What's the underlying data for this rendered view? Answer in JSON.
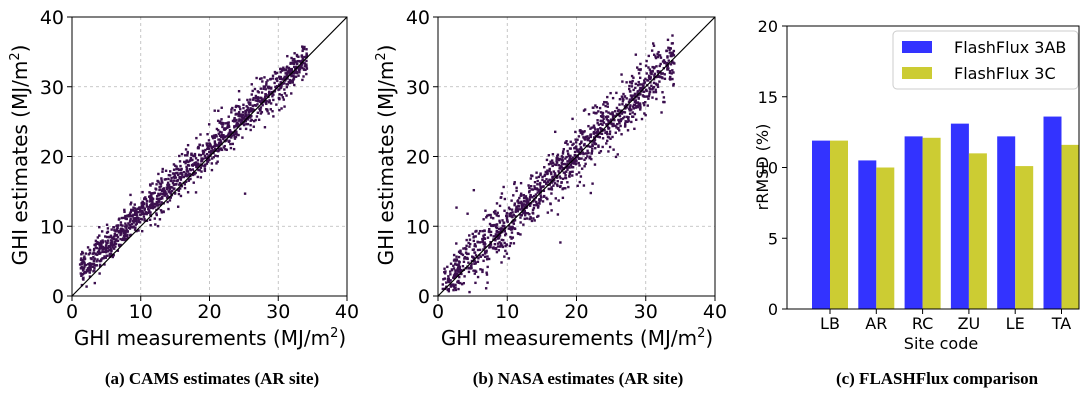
{
  "chart_data": [
    {
      "id": "a",
      "type": "scatter",
      "style": "2d-histogram",
      "caption": "(a) CAMS estimates (AR site)",
      "xlabel": "GHI measurements (MJ/m",
      "xlabel_sup": "2",
      "xlabel_end": ")",
      "ylabel": "GHI estimates (MJ/m",
      "ylabel_sup": "2",
      "ylabel_end": ")",
      "xlim": [
        0,
        40
      ],
      "ylim": [
        0,
        40
      ],
      "xticks": [
        "0",
        "10",
        "20",
        "30",
        "40"
      ],
      "yticks": [
        "0",
        "10",
        "20",
        "30",
        "40"
      ],
      "grid": true,
      "identity_line": true,
      "point_color": "#3b0f4e",
      "x_range": [
        1.0,
        34.0
      ],
      "y_intercept": 2.5,
      "y_slope": 0.93,
      "spread": 1.3,
      "outliers": [
        [
          25,
          14.5
        ]
      ]
    },
    {
      "id": "b",
      "type": "scatter",
      "style": "2d-histogram",
      "caption": "(b) NASA estimates (AR site)",
      "xlabel": "GHI measurements (MJ/m",
      "xlabel_sup": "2",
      "xlabel_end": ")",
      "ylabel": "GHI estimates (MJ/m",
      "ylabel_sup": "2",
      "ylabel_end": ")",
      "xlim": [
        0,
        40
      ],
      "ylim": [
        0,
        40
      ],
      "xticks": [
        "0",
        "10",
        "20",
        "30",
        "40"
      ],
      "yticks": [
        "0",
        "10",
        "20",
        "30",
        "40"
      ],
      "grid": true,
      "identity_line": true,
      "point_color": "#3b0f4e",
      "x_range": [
        0.5,
        34.0
      ],
      "y_intercept": 0.8,
      "y_slope": 0.97,
      "spread": 1.9,
      "outliers": [
        [
          2.5,
          12.5
        ],
        [
          5,
          15
        ],
        [
          17.5,
          7.5
        ],
        [
          7,
          4
        ]
      ]
    },
    {
      "id": "c",
      "type": "bar",
      "caption": "(c) FLASHFlux comparison",
      "xlabel": "Site code",
      "ylabel": "rRMSD (%)",
      "categories": [
        "LB",
        "AR",
        "RC",
        "ZU",
        "LE",
        "TA"
      ],
      "ylim": [
        0,
        20
      ],
      "yticks": [
        "0",
        "5",
        "10",
        "15",
        "20"
      ],
      "grid": false,
      "legend_position": "top-right",
      "series": [
        {
          "name": "FlashFlux 3AB",
          "color": "#3333ff",
          "values": [
            11.9,
            10.5,
            12.2,
            13.1,
            12.2,
            13.6
          ]
        },
        {
          "name": "FlashFlux 3C",
          "color": "#cccc33",
          "values": [
            11.9,
            10.0,
            12.1,
            11.0,
            10.1,
            11.6
          ]
        }
      ]
    }
  ]
}
